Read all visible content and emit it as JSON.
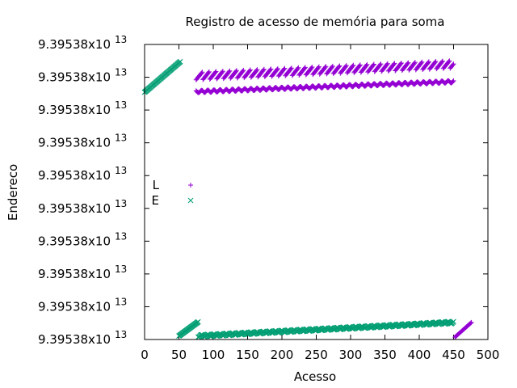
{
  "chart_data": {
    "type": "scatter",
    "title": "Registro de acesso de memória para soma",
    "xlabel": "Acesso",
    "ylabel": "Endereco",
    "xlim": [
      0,
      500
    ],
    "ylim": [
      0,
      1
    ],
    "x_ticks": [
      "0",
      "50",
      "100",
      "150",
      "200",
      "250",
      "300",
      "350",
      "400",
      "450",
      "500"
    ],
    "x_tick_values": [
      0,
      50,
      100,
      150,
      200,
      250,
      300,
      350,
      400,
      450,
      500
    ],
    "y_ticks": [
      "9.39538x10 13",
      "9.39538x10 13",
      "9.39538x10 13",
      "9.39538x10 13",
      "9.39538x10 13",
      "9.39538x10 13",
      "9.39538x10 13",
      "9.39538x10 13",
      "9.39538x10 13",
      "9.39538x10 13"
    ],
    "y_tick_base": "9.39538x10",
    "y_tick_exp": "13",
    "legend_placement": "left-middle",
    "grid": false,
    "series": [
      {
        "name": "L",
        "color": "#9400d3",
        "marker": "plus",
        "groups": [
          {
            "x_start": 75,
            "x_end": 450,
            "y_start": 0.84,
            "y_end": 0.874,
            "jitter": 0.004
          },
          {
            "x_start": 75,
            "x_end": 450,
            "y_start": 0.894,
            "y_end": 0.934,
            "sawtooth": 0.028,
            "period": 10
          },
          {
            "x_start": 452,
            "x_end": 476,
            "y_start": 0.008,
            "y_end": 0.058
          }
        ]
      },
      {
        "name": "E",
        "color": "#009e73",
        "marker": "cross",
        "groups": [
          {
            "x_start": 0,
            "x_end": 52,
            "y_start": 0.838,
            "y_end": 0.942
          },
          {
            "x_start": 50,
            "x_end": 78,
            "y_start": 0.012,
            "y_end": 0.06
          },
          {
            "x_start": 78,
            "x_end": 450,
            "y_start": 0.012,
            "y_end": 0.058,
            "jitter": 0.004
          }
        ]
      }
    ]
  }
}
